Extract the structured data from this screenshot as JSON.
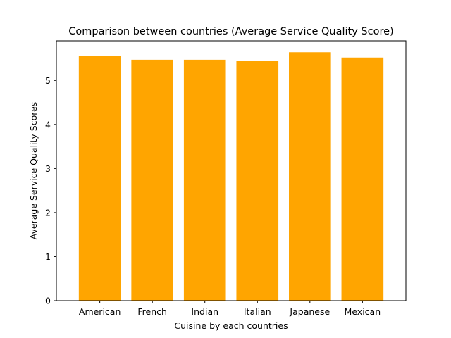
{
  "chart_data": {
    "type": "bar",
    "title": "Comparison between countries (Average Service Quality Score)",
    "xlabel": "Cuisine by each countries",
    "ylabel": "Average Service Quality Scores",
    "categories": [
      "American",
      "French",
      "Indian",
      "Italian",
      "Japanese",
      "Mexican"
    ],
    "values": [
      5.55,
      5.47,
      5.47,
      5.44,
      5.64,
      5.52
    ],
    "ylim": [
      0,
      5.9
    ],
    "yticks": [
      0,
      1,
      2,
      3,
      4,
      5
    ],
    "bar_color": "#ffa500",
    "grid": false,
    "legend": "none"
  }
}
